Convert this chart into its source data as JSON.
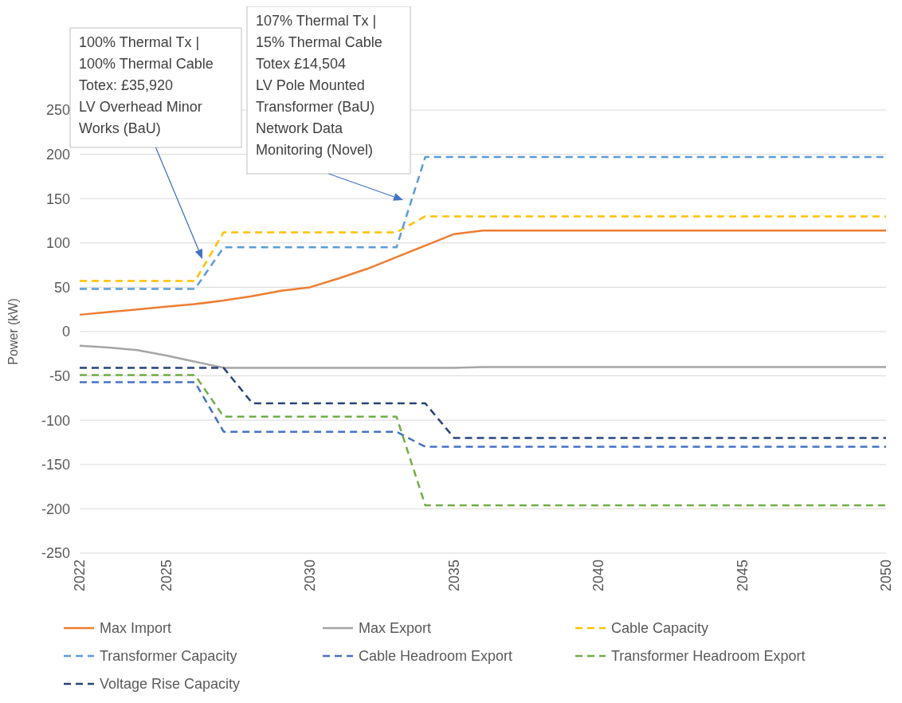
{
  "chart_data": {
    "type": "line",
    "ylabel": "Power (kW)",
    "x": [
      2022,
      2023,
      2024,
      2025,
      2026,
      2027,
      2028,
      2029,
      2030,
      2031,
      2032,
      2033,
      2034,
      2035,
      2036,
      2037,
      2038,
      2039,
      2040,
      2041,
      2042,
      2043,
      2044,
      2045,
      2046,
      2047,
      2048,
      2049,
      2050
    ],
    "xlim": [
      2022,
      2050
    ],
    "xticks": [
      2022,
      2025,
      2030,
      2035,
      2040,
      2045,
      2050
    ],
    "ylim": [
      -250,
      250
    ],
    "yticks": [
      -250,
      -200,
      -150,
      -100,
      -50,
      0,
      50,
      100,
      150,
      200,
      250
    ],
    "grid": "y",
    "legend": "bottom",
    "series": [
      {
        "name": "Max Import",
        "color": "#ed7d31",
        "line_style": "solid",
        "values": [
          19,
          22,
          25,
          28,
          31,
          35,
          40,
          46,
          50,
          60,
          71,
          84,
          97,
          110,
          114,
          114,
          114,
          114,
          114,
          114,
          114,
          114,
          114,
          114,
          114,
          114,
          114,
          114,
          114
        ]
      },
      {
        "name": "Max Export",
        "color": "#a5a5a5",
        "line_style": "solid",
        "values": [
          -16,
          -18,
          -21,
          -27,
          -34,
          -41,
          -41,
          -41,
          -41,
          -41,
          -41,
          -41,
          -41,
          -41,
          -40,
          -40,
          -40,
          -40,
          -40,
          -40,
          -40,
          -40,
          -40,
          -40,
          -40,
          -40,
          -40,
          -40,
          -40
        ]
      },
      {
        "name": "Cable Capacity",
        "color": "#ffc000",
        "line_style": "dashed",
        "values": [
          57,
          57,
          57,
          57,
          57,
          112,
          112,
          112,
          112,
          112,
          112,
          112,
          130,
          130,
          130,
          130,
          130,
          130,
          130,
          130,
          130,
          130,
          130,
          130,
          130,
          130,
          130,
          130,
          130
        ]
      },
      {
        "name": "Transformer Capacity",
        "color": "#5b9bd5",
        "line_style": "dashed",
        "values": [
          48,
          48,
          48,
          48,
          48,
          95,
          95,
          95,
          95,
          95,
          95,
          95,
          197,
          197,
          197,
          197,
          197,
          197,
          197,
          197,
          197,
          197,
          197,
          197,
          197,
          197,
          197,
          197,
          197
        ]
      },
      {
        "name": "Cable Headroom Export",
        "color": "#4472c4",
        "line_style": "dashed",
        "values": [
          -57,
          -57,
          -57,
          -57,
          -57,
          -113,
          -113,
          -113,
          -113,
          -113,
          -113,
          -113,
          -130,
          -130,
          -130,
          -130,
          -130,
          -130,
          -130,
          -130,
          -130,
          -130,
          -130,
          -130,
          -130,
          -130,
          -130,
          -130,
          -130
        ]
      },
      {
        "name": "Transformer Headroom Export",
        "color": "#70ad47",
        "line_style": "dashed",
        "values": [
          -49,
          -49,
          -49,
          -49,
          -49,
          -96,
          -96,
          -96,
          -96,
          -96,
          -96,
          -96,
          -196,
          -196,
          -196,
          -196,
          -196,
          -196,
          -196,
          -196,
          -196,
          -196,
          -196,
          -196,
          -196,
          -196,
          -196,
          -196,
          -196
        ]
      },
      {
        "name": "Voltage Rise Capacity",
        "color": "#264478",
        "line_style": "dashed",
        "values": [
          -41,
          -41,
          -41,
          -41,
          -41,
          -41,
          -81,
          -81,
          -81,
          -81,
          -81,
          -81,
          -81,
          -120,
          -120,
          -120,
          -120,
          -120,
          -120,
          -120,
          -120,
          -120,
          -120,
          -120,
          -120,
          -120,
          -120,
          -120,
          -120
        ]
      }
    ],
    "annotations": [
      "100% Thermal Tx |\n100% Thermal Cable\nTotex: £35,920\nLV Overhead Minor\nWorks (BaU)",
      "107% Thermal Tx |\n15% Thermal Cable\nTotex £14,504\nLV Pole Mounted\nTransformer (BaU)\nNetwork Data\nMonitoring (Novel)"
    ]
  }
}
